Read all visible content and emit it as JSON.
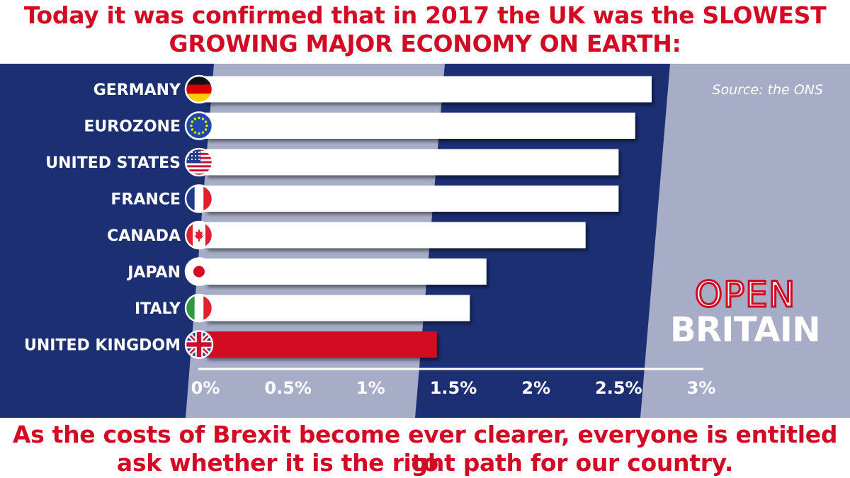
{
  "headline": {
    "line1": "Today it was confirmed that in 2017 the UK was the SLOWEST",
    "line2": "GROWING MAJOR ECONOMY ON EARTH:"
  },
  "footer": {
    "line1": "As the costs of Brexit become ever clearer, everyone is entitled to",
    "line2": "ask whether it is the right path for our country."
  },
  "source": "Source: the ONS",
  "logo": {
    "line1": "OPEN",
    "line2": "BRITAIN"
  },
  "colors": {
    "navy": "#1b2f72",
    "slate": "#a7adc6",
    "red": "#d20a24",
    "bar": "#ffffff"
  },
  "chart_data": {
    "type": "bar",
    "orientation": "horizontal",
    "categories": [
      "GERMANY",
      "EUROZONE",
      "UNITED STATES",
      "FRANCE",
      "CANADA",
      "JAPAN",
      "ITALY",
      "UNITED KINGDOM"
    ],
    "flags": [
      "germany-flag",
      "eu-flag",
      "usa-flag",
      "france-flag",
      "canada-flag",
      "japan-flag",
      "italy-flag",
      "uk-flag"
    ],
    "values": [
      2.7,
      2.6,
      2.5,
      2.5,
      2.3,
      1.7,
      1.6,
      1.4
    ],
    "highlight": "UNITED KINGDOM",
    "xlim": [
      0,
      3
    ],
    "xticks": [
      0,
      0.5,
      1,
      1.5,
      2,
      2.5,
      3
    ],
    "xtick_labels": [
      "0%",
      "0.5%",
      "1%",
      "1.5%",
      "2%",
      "2.5%",
      "3%"
    ],
    "grid": false,
    "legend": "none"
  }
}
